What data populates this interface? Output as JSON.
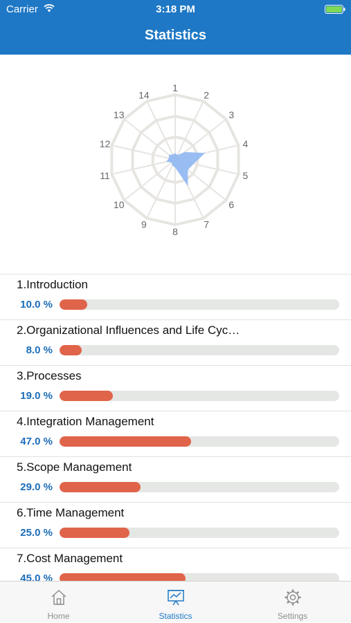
{
  "status_bar": {
    "carrier": "Carrier",
    "time": "3:18 PM"
  },
  "nav": {
    "title": "Statistics"
  },
  "radar": {
    "axis_labels": [
      "1",
      "2",
      "3",
      "4",
      "5",
      "6",
      "7",
      "8",
      "9",
      "10",
      "11",
      "12",
      "13",
      "14"
    ],
    "values": [
      0.1,
      0.08,
      0.19,
      0.47,
      0.29,
      0.25,
      0.45,
      0.12,
      0.1,
      0.07,
      0.14,
      0.1,
      0.12,
      0.09
    ],
    "fill_color": "#8fb7f2",
    "grid_color": "#e7e5e1"
  },
  "topics": [
    {
      "title": "1.Introduction",
      "percent_label": "10.0 %",
      "value": 0.1
    },
    {
      "title": "2.Organizational Influences and Life Cyc…",
      "percent_label": "8.0 %",
      "value": 0.08
    },
    {
      "title": "3.Processes",
      "percent_label": "19.0 %",
      "value": 0.19
    },
    {
      "title": "4.Integration Management",
      "percent_label": "47.0 %",
      "value": 0.47
    },
    {
      "title": "5.Scope Management",
      "percent_label": "29.0 %",
      "value": 0.29
    },
    {
      "title": "6.Time Management",
      "percent_label": "25.0 %",
      "value": 0.25
    },
    {
      "title": "7.Cost Management",
      "percent_label": "45.0 %",
      "value": 0.45
    }
  ],
  "colors": {
    "accent": "#1f78c5",
    "bar_fill": "#e0644a",
    "bar_track": "#e5e7e4",
    "percent_text": "#1d6db8"
  },
  "tabbar": {
    "tabs": [
      {
        "label": "Home",
        "icon": "home-icon"
      },
      {
        "label": "Statistics",
        "icon": "statistics-icon"
      },
      {
        "label": "Settings",
        "icon": "gear-icon"
      }
    ],
    "active": "Statistics"
  }
}
